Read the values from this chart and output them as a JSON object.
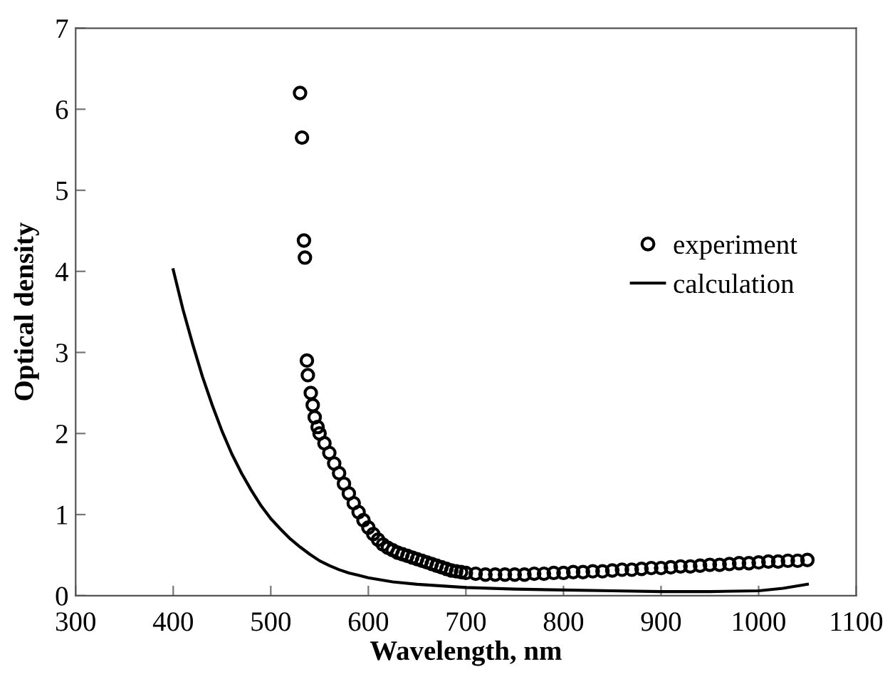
{
  "chart_data": {
    "type": "scatter",
    "xlabel": "Wavelength, nm",
    "ylabel": "Optical density",
    "xlim": [
      300,
      1100
    ],
    "xticks": [
      300,
      400,
      500,
      600,
      700,
      800,
      900,
      1000,
      1100
    ],
    "ylim": [
      0,
      7
    ],
    "yticks": [
      0,
      1,
      2,
      3,
      4,
      5,
      6,
      7
    ],
    "grid": false,
    "legend": "right",
    "series": [
      {
        "name": "experiment",
        "marker": "circle",
        "color": "#000000",
        "x": [
          530,
          532,
          534,
          535,
          537,
          538,
          541,
          543,
          545,
          548,
          550,
          555,
          560,
          565,
          570,
          575,
          580,
          585,
          590,
          595,
          600,
          605,
          610,
          615,
          620,
          625,
          630,
          635,
          640,
          645,
          650,
          655,
          660,
          665,
          670,
          675,
          680,
          685,
          690,
          695,
          700,
          710,
          720,
          730,
          740,
          750,
          760,
          770,
          780,
          790,
          800,
          810,
          820,
          830,
          840,
          850,
          860,
          870,
          880,
          890,
          900,
          910,
          920,
          930,
          940,
          950,
          960,
          970,
          980,
          990,
          1000,
          1010,
          1020,
          1030,
          1040,
          1050
        ],
        "values": [
          6.2,
          5.65,
          4.38,
          4.17,
          2.9,
          2.72,
          2.5,
          2.35,
          2.2,
          2.08,
          2.0,
          1.88,
          1.76,
          1.63,
          1.51,
          1.38,
          1.26,
          1.14,
          1.03,
          0.93,
          0.84,
          0.76,
          0.69,
          0.63,
          0.59,
          0.56,
          0.53,
          0.51,
          0.49,
          0.47,
          0.45,
          0.43,
          0.41,
          0.39,
          0.37,
          0.35,
          0.33,
          0.31,
          0.3,
          0.29,
          0.28,
          0.27,
          0.26,
          0.26,
          0.26,
          0.26,
          0.26,
          0.27,
          0.27,
          0.28,
          0.28,
          0.29,
          0.29,
          0.3,
          0.3,
          0.31,
          0.32,
          0.32,
          0.33,
          0.34,
          0.34,
          0.35,
          0.36,
          0.36,
          0.37,
          0.38,
          0.38,
          0.39,
          0.4,
          0.4,
          0.41,
          0.42,
          0.42,
          0.43,
          0.43,
          0.44
        ]
      },
      {
        "name": "calculation",
        "type": "line",
        "marker": "none",
        "line_style": "solid",
        "color": "#000000",
        "x": [
          400,
          410,
          420,
          430,
          440,
          450,
          460,
          470,
          480,
          490,
          500,
          510,
          520,
          530,
          540,
          550,
          560,
          570,
          580,
          590,
          600,
          625,
          650,
          675,
          700,
          750,
          800,
          850,
          900,
          950,
          1000,
          1025,
          1050
        ],
        "values": [
          4.02,
          3.53,
          3.1,
          2.7,
          2.35,
          2.03,
          1.75,
          1.51,
          1.3,
          1.11,
          0.95,
          0.82,
          0.7,
          0.6,
          0.51,
          0.43,
          0.37,
          0.32,
          0.28,
          0.25,
          0.22,
          0.17,
          0.14,
          0.12,
          0.1,
          0.08,
          0.07,
          0.06,
          0.05,
          0.05,
          0.06,
          0.09,
          0.14
        ]
      }
    ]
  }
}
